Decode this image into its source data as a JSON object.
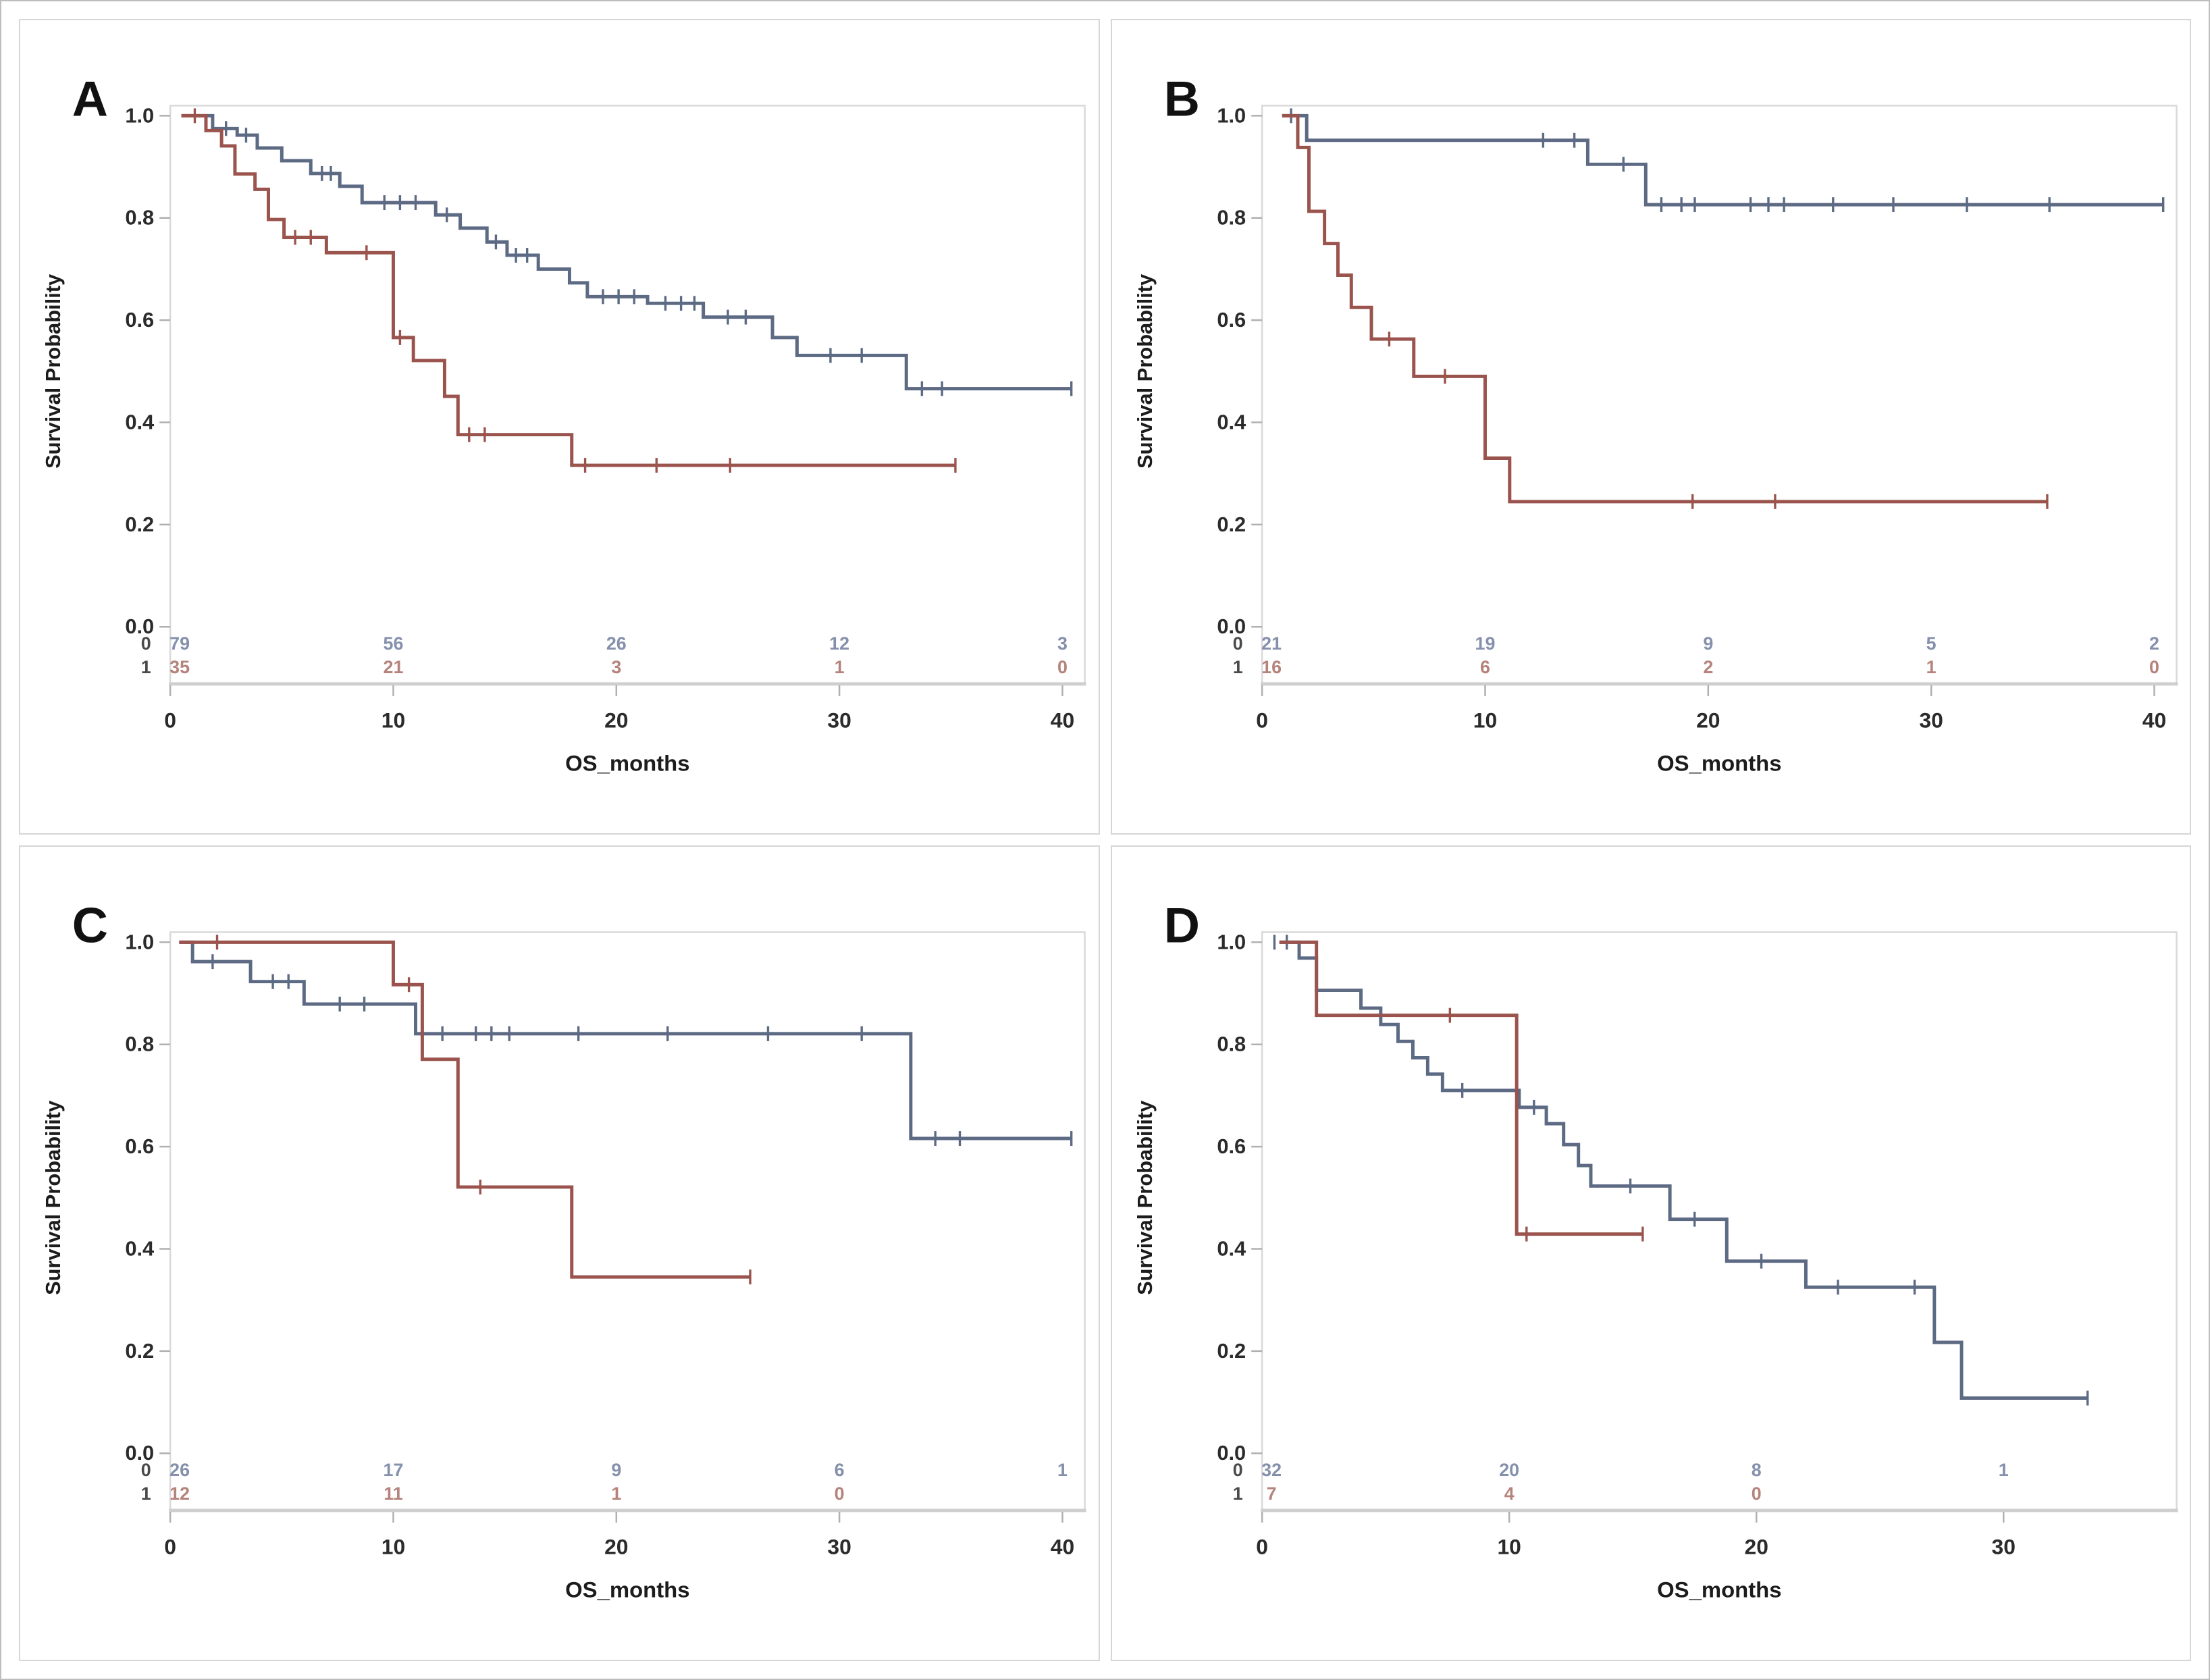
{
  "figure": {
    "background": "#ffffff",
    "border_color": "#bdbdbd",
    "panel_border_color": "#d6d6d6",
    "wall_border_color": "#d9d9d9",
    "axis_line_color": "#cfcfcf",
    "tick_color": "#b0b0b0",
    "tick_label_color": "#2b2b2b",
    "group0_color": "#5d6a84",
    "group1_color": "#9a544d",
    "group0_atrisk_text_color": "#8590ad",
    "group1_atrisk_text_color": "#b5837b",
    "atrisk_row_label_color": "#4a4a4a",
    "panel_letter_color": "#111111"
  },
  "chart_data": [
    {
      "type": "line",
      "subtype": "kaplan-meier-step",
      "panel_label": "A",
      "xlabel": "OS_months",
      "ylabel": "Survival Probability",
      "ylim": [
        0.0,
        1.0
      ],
      "yticks": [
        "1.0",
        "0.8",
        "0.6",
        "0.4",
        "0.2",
        "0.0"
      ],
      "xticks": [
        0,
        10,
        20,
        30,
        40
      ],
      "xmax_wall": 41,
      "legend": "none",
      "grid": "off",
      "series": [
        {
          "name": "0",
          "color": "#5d6a84",
          "steps": [
            [
              0.5,
              1.0
            ],
            [
              1.9,
              0.975
            ],
            [
              3.0,
              0.962
            ],
            [
              3.9,
              0.937
            ],
            [
              5.0,
              0.912
            ],
            [
              6.3,
              0.887
            ],
            [
              7.6,
              0.862
            ],
            [
              8.6,
              0.83
            ],
            [
              11.9,
              0.806
            ],
            [
              13.0,
              0.78
            ],
            [
              14.2,
              0.753
            ],
            [
              15.1,
              0.727
            ],
            [
              16.5,
              0.7
            ],
            [
              17.9,
              0.673
            ],
            [
              18.7,
              0.646
            ],
            [
              21.4,
              0.633
            ],
            [
              23.9,
              0.606
            ],
            [
              27.0,
              0.566
            ],
            [
              28.1,
              0.531
            ],
            [
              33.0,
              0.466
            ]
          ],
          "end_x": 40.4,
          "censors": [
            [
              2.5,
              0.975
            ],
            [
              3.4,
              0.962
            ],
            [
              6.8,
              0.887
            ],
            [
              7.2,
              0.887
            ],
            [
              9.6,
              0.83
            ],
            [
              10.3,
              0.83
            ],
            [
              11.0,
              0.83
            ],
            [
              12.4,
              0.806
            ],
            [
              14.6,
              0.753
            ],
            [
              15.5,
              0.727
            ],
            [
              16.0,
              0.727
            ],
            [
              19.4,
              0.646
            ],
            [
              20.1,
              0.646
            ],
            [
              20.8,
              0.646
            ],
            [
              22.2,
              0.633
            ],
            [
              22.9,
              0.633
            ],
            [
              23.5,
              0.633
            ],
            [
              25.0,
              0.606
            ],
            [
              25.8,
              0.606
            ],
            [
              29.6,
              0.531
            ],
            [
              31.0,
              0.531
            ],
            [
              33.7,
              0.466
            ],
            [
              34.6,
              0.466
            ],
            [
              40.4,
              0.466
            ]
          ]
        },
        {
          "name": "1",
          "color": "#9a544d",
          "steps": [
            [
              0.5,
              1.0
            ],
            [
              1.6,
              0.971
            ],
            [
              2.3,
              0.941
            ],
            [
              2.9,
              0.886
            ],
            [
              3.8,
              0.856
            ],
            [
              4.4,
              0.797
            ],
            [
              5.1,
              0.762
            ],
            [
              7.0,
              0.732
            ],
            [
              10.0,
              0.566
            ],
            [
              10.9,
              0.521
            ],
            [
              12.3,
              0.451
            ],
            [
              12.9,
              0.376
            ],
            [
              18.0,
              0.316
            ]
          ],
          "end_x": 35.2,
          "censors": [
            [
              1.1,
              1.0
            ],
            [
              5.6,
              0.762
            ],
            [
              6.3,
              0.762
            ],
            [
              8.8,
              0.732
            ],
            [
              10.3,
              0.566
            ],
            [
              13.4,
              0.376
            ],
            [
              14.1,
              0.376
            ],
            [
              18.6,
              0.316
            ],
            [
              21.8,
              0.316
            ],
            [
              25.1,
              0.316
            ],
            [
              35.2,
              0.316
            ]
          ]
        }
      ],
      "at_risk": {
        "ticks": [
          0,
          10,
          20,
          30,
          40
        ],
        "rows": [
          {
            "label": "0",
            "values": [
              "79",
              "56",
              "26",
              "12",
              "3"
            ]
          },
          {
            "label": "1",
            "values": [
              "35",
              "21",
              "3",
              "1",
              "0"
            ]
          }
        ]
      }
    },
    {
      "type": "line",
      "subtype": "kaplan-meier-step",
      "panel_label": "B",
      "xlabel": "OS_months",
      "ylabel": "Survival Probability",
      "ylim": [
        0.0,
        1.0
      ],
      "yticks": [
        "1.0",
        "0.8",
        "0.6",
        "0.4",
        "0.2",
        "0.0"
      ],
      "xticks": [
        0,
        10,
        20,
        30,
        40
      ],
      "xmax_wall": 41,
      "legend": "none",
      "grid": "off",
      "series": [
        {
          "name": "0",
          "color": "#5d6a84",
          "steps": [
            [
              0.9,
              1.0
            ],
            [
              2.0,
              0.952
            ],
            [
              14.6,
              0.905
            ],
            [
              17.2,
              0.826
            ]
          ],
          "end_x": 40.4,
          "censors": [
            [
              1.3,
              1.0
            ],
            [
              12.6,
              0.952
            ],
            [
              14.0,
              0.952
            ],
            [
              16.2,
              0.905
            ],
            [
              17.9,
              0.826
            ],
            [
              18.8,
              0.826
            ],
            [
              19.4,
              0.826
            ],
            [
              21.9,
              0.826
            ],
            [
              22.7,
              0.826
            ],
            [
              23.4,
              0.826
            ],
            [
              25.6,
              0.826
            ],
            [
              28.3,
              0.826
            ],
            [
              31.6,
              0.826
            ],
            [
              35.3,
              0.826
            ],
            [
              40.4,
              0.826
            ]
          ]
        },
        {
          "name": "1",
          "color": "#9a544d",
          "steps": [
            [
              0.9,
              1.0
            ],
            [
              1.6,
              0.938
            ],
            [
              2.1,
              0.813
            ],
            [
              2.8,
              0.75
            ],
            [
              3.4,
              0.688
            ],
            [
              4.0,
              0.625
            ],
            [
              4.9,
              0.563
            ],
            [
              6.8,
              0.49
            ],
            [
              10.0,
              0.33
            ],
            [
              11.1,
              0.245
            ]
          ],
          "end_x": 35.2,
          "censors": [
            [
              5.7,
              0.563
            ],
            [
              8.2,
              0.49
            ],
            [
              19.3,
              0.245
            ],
            [
              23.0,
              0.245
            ],
            [
              35.2,
              0.245
            ]
          ]
        }
      ],
      "at_risk": {
        "ticks": [
          0,
          10,
          20,
          30,
          40
        ],
        "rows": [
          {
            "label": "0",
            "values": [
              "21",
              "19",
              "9",
              "5",
              "2"
            ]
          },
          {
            "label": "1",
            "values": [
              "16",
              "6",
              "2",
              "1",
              "0"
            ]
          }
        ]
      }
    },
    {
      "type": "line",
      "subtype": "kaplan-meier-step",
      "panel_label": "C",
      "xlabel": "OS_months",
      "ylabel": "Survival Probability",
      "ylim": [
        0.0,
        1.0
      ],
      "yticks": [
        "1.0",
        "0.8",
        "0.6",
        "0.4",
        "0.2",
        "0.0"
      ],
      "xticks": [
        0,
        10,
        20,
        30,
        40
      ],
      "xmax_wall": 41,
      "legend": "none",
      "grid": "off",
      "series": [
        {
          "name": "0",
          "color": "#5d6a84",
          "steps": [
            [
              0.4,
              1.0
            ],
            [
              1.0,
              0.962
            ],
            [
              3.6,
              0.923
            ],
            [
              6.0,
              0.879
            ],
            [
              11.0,
              0.821
            ],
            [
              33.2,
              0.616
            ]
          ],
          "end_x": 40.4,
          "censors": [
            [
              1.9,
              0.962
            ],
            [
              4.6,
              0.923
            ],
            [
              5.3,
              0.923
            ],
            [
              7.6,
              0.879
            ],
            [
              8.7,
              0.879
            ],
            [
              12.2,
              0.821
            ],
            [
              13.7,
              0.821
            ],
            [
              14.4,
              0.821
            ],
            [
              15.2,
              0.821
            ],
            [
              18.3,
              0.821
            ],
            [
              22.3,
              0.821
            ],
            [
              26.8,
              0.821
            ],
            [
              31.0,
              0.821
            ],
            [
              34.3,
              0.616
            ],
            [
              35.4,
              0.616
            ],
            [
              40.4,
              0.616
            ]
          ]
        },
        {
          "name": "1",
          "color": "#9a544d",
          "steps": [
            [
              0.4,
              1.0
            ],
            [
              10.0,
              0.917
            ],
            [
              11.3,
              0.771
            ],
            [
              12.9,
              0.521
            ],
            [
              18.0,
              0.345
            ]
          ],
          "end_x": 26.0,
          "censors": [
            [
              2.1,
              1.0
            ],
            [
              10.7,
              0.917
            ],
            [
              13.9,
              0.521
            ],
            [
              26.0,
              0.345
            ]
          ]
        }
      ],
      "at_risk": {
        "ticks": [
          0,
          10,
          20,
          30,
          40
        ],
        "rows": [
          {
            "label": "0",
            "values": [
              "26",
              "17",
              "9",
              "6",
              "1"
            ]
          },
          {
            "label": "1",
            "values": [
              "12",
              "11",
              "1",
              "0"
            ]
          }
        ]
      }
    },
    {
      "type": "line",
      "subtype": "kaplan-meier-step",
      "panel_label": "D",
      "xlabel": "OS_months",
      "ylabel": "Survival Probability",
      "ylim": [
        0.0,
        1.0
      ],
      "yticks": [
        "1.0",
        "0.8",
        "0.6",
        "0.4",
        "0.2",
        "0.0"
      ],
      "xticks": [
        0,
        10,
        20,
        30
      ],
      "xmax_wall": 37,
      "legend": "none",
      "grid": "off",
      "series": [
        {
          "name": "0",
          "color": "#5d6a84",
          "steps": [
            [
              0.7,
              1.0
            ],
            [
              1.5,
              0.969
            ],
            [
              2.2,
              0.906
            ],
            [
              4.0,
              0.871
            ],
            [
              4.8,
              0.839
            ],
            [
              5.5,
              0.806
            ],
            [
              6.1,
              0.774
            ],
            [
              6.7,
              0.742
            ],
            [
              7.3,
              0.71
            ],
            [
              10.4,
              0.677
            ],
            [
              11.5,
              0.645
            ],
            [
              12.2,
              0.604
            ],
            [
              12.8,
              0.563
            ],
            [
              13.3,
              0.523
            ],
            [
              16.5,
              0.458
            ],
            [
              18.8,
              0.376
            ],
            [
              22.0,
              0.325
            ],
            [
              27.2,
              0.217
            ],
            [
              28.3,
              0.108
            ]
          ],
          "end_x": 33.4,
          "censors": [
            [
              0.5,
              1.0
            ],
            [
              1.0,
              1.0
            ],
            [
              8.1,
              0.71
            ],
            [
              11.0,
              0.677
            ],
            [
              14.9,
              0.523
            ],
            [
              17.5,
              0.458
            ],
            [
              20.2,
              0.376
            ],
            [
              23.3,
              0.325
            ],
            [
              26.4,
              0.325
            ],
            [
              33.4,
              0.108
            ]
          ]
        },
        {
          "name": "1",
          "color": "#9a544d",
          "steps": [
            [
              0.7,
              1.0
            ],
            [
              2.2,
              0.857
            ],
            [
              10.3,
              0.429
            ]
          ],
          "end_x": 15.4,
          "censors": [
            [
              7.6,
              0.857
            ],
            [
              10.7,
              0.429
            ],
            [
              15.4,
              0.429
            ]
          ]
        }
      ],
      "at_risk": {
        "ticks": [
          0,
          10,
          20,
          30
        ],
        "rows": [
          {
            "label": "0",
            "values": [
              "32",
              "20",
              "8",
              "1"
            ]
          },
          {
            "label": "1",
            "values": [
              "7",
              "4",
              "0"
            ]
          }
        ]
      }
    }
  ]
}
